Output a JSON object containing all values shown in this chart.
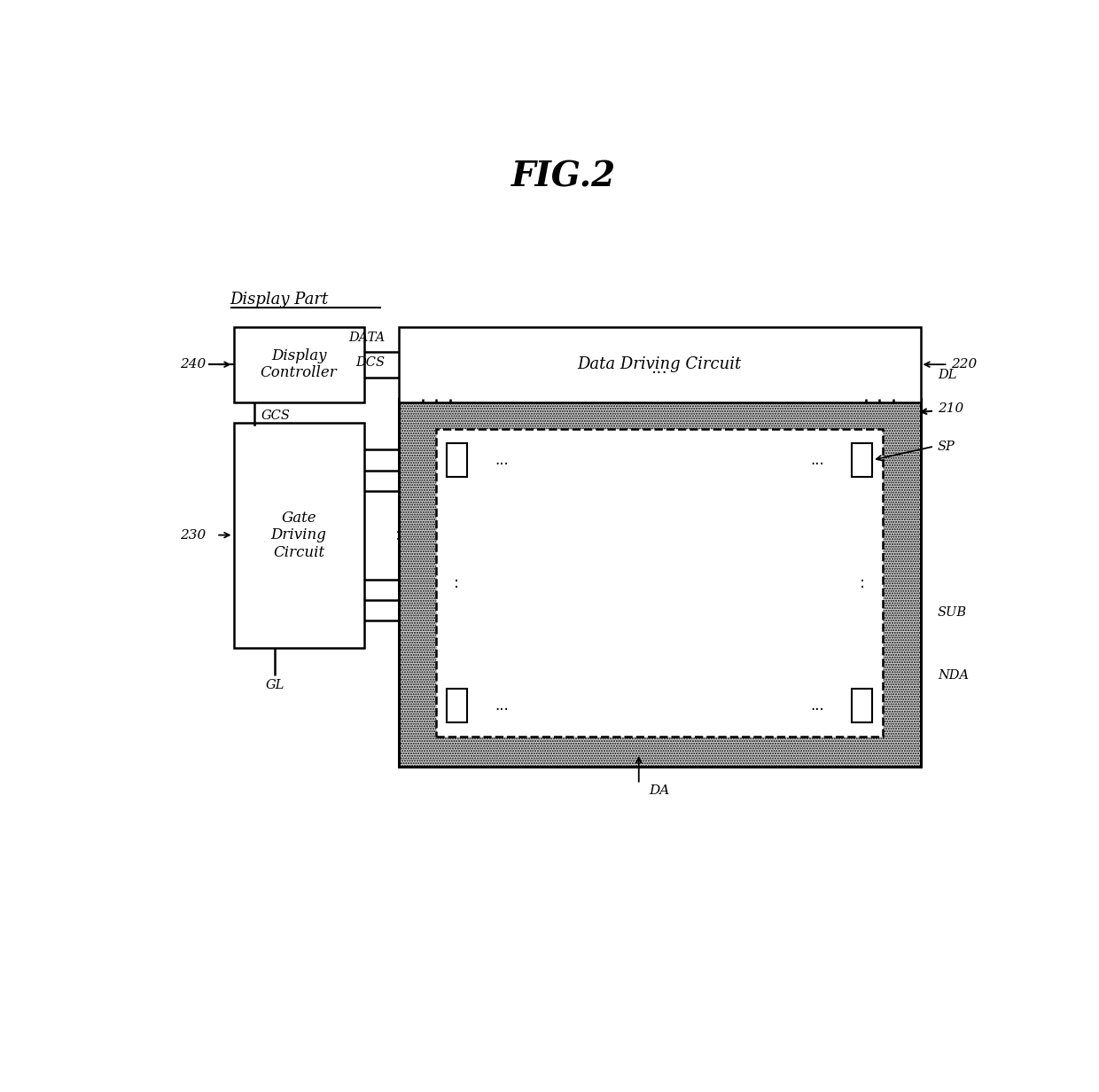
{
  "title": "FIG.2",
  "background_color": "#ffffff",
  "label_display_part": "Display Part",
  "label_display_controller": "Display\nController",
  "label_data_driving_circuit": "Data Driving Circuit",
  "label_gate_driving_circuit": "Gate\nDriving\nCircuit",
  "label_data": "DATA",
  "label_dcs": "DCS",
  "label_gcs": "GCS",
  "label_gl": "GL",
  "label_dl": "DL",
  "label_210": "210",
  "label_220": "220",
  "label_230": "230",
  "label_240": "240",
  "label_sp": "SP",
  "label_sub": "SUB",
  "label_nda": "NDA",
  "label_da": "DA",
  "label_dots_h": "...",
  "label_dots_v": ":",
  "line_color": "#000000",
  "fill_white": "#ffffff",
  "fill_gray": "#cccccc"
}
